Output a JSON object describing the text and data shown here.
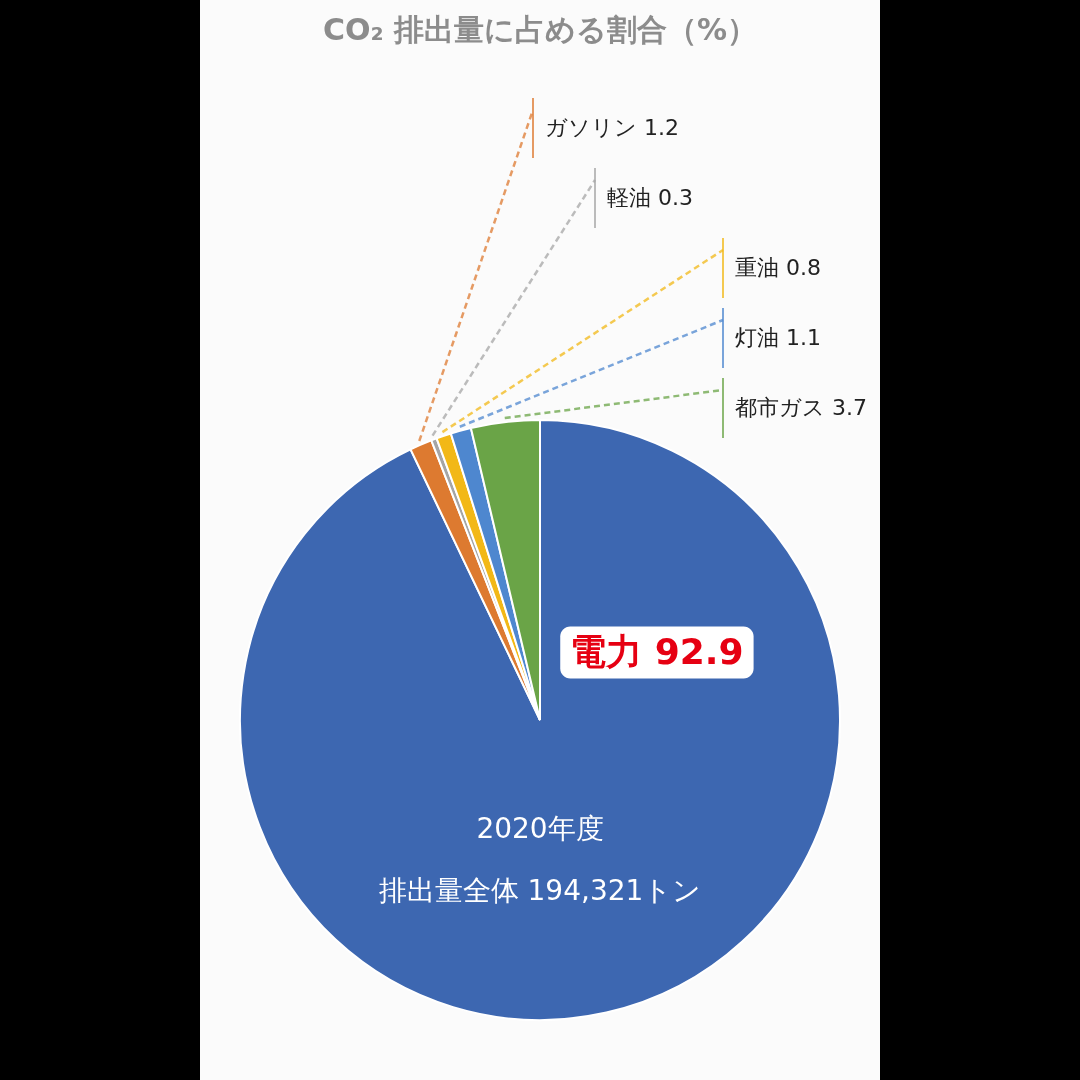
{
  "chart_data": {
    "type": "pie",
    "title": "CO₂ 排出量に占める割合（%）",
    "categories": [
      "電力",
      "ガソリン",
      "軽油",
      "重油",
      "灯油",
      "都市ガス"
    ],
    "values": [
      92.9,
      1.2,
      0.3,
      0.8,
      1.1,
      3.7
    ],
    "colors": [
      "#3d67b1",
      "#dd7a30",
      "#a5a5a5",
      "#f2b817",
      "#4e87cf",
      "#6aa447"
    ],
    "data_labels": true,
    "annotations": [
      "2020年度",
      "排出量全体 194,321トン"
    ]
  }
}
